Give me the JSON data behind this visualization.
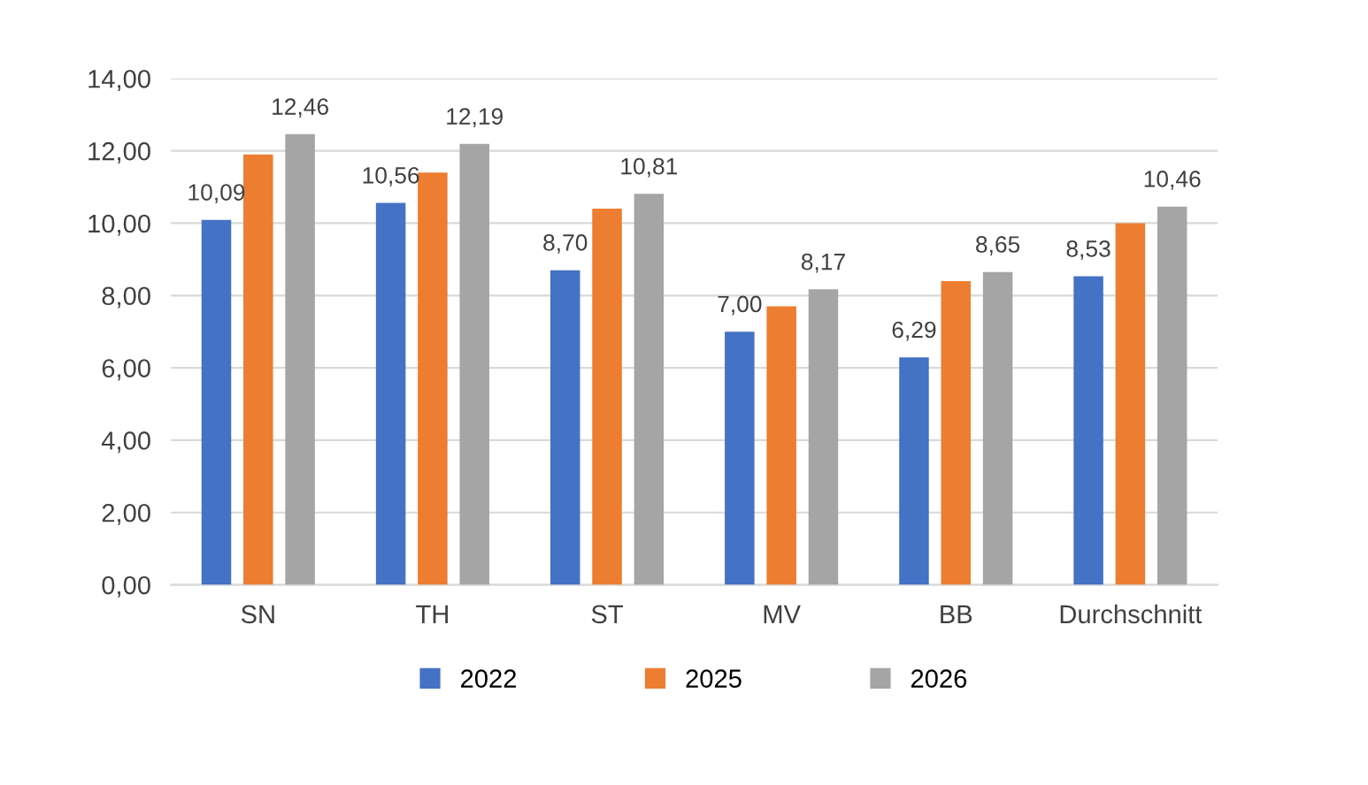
{
  "chart_data": {
    "type": "bar",
    "categories": [
      "SN",
      "TH",
      "ST",
      "MV",
      "BB",
      "Durchschnitt"
    ],
    "series": [
      {
        "name": "2022",
        "color": "#4472c4",
        "values": [
          10.09,
          10.56,
          8.7,
          7.0,
          6.29,
          8.53
        ],
        "value_labels": [
          "10,09",
          "10,56",
          "8,70",
          "7,00",
          "6,29",
          "8,53"
        ]
      },
      {
        "name": "2025",
        "color": "#ed7d31",
        "values": [
          11.9,
          11.4,
          10.4,
          7.7,
          8.4,
          10.0
        ]
      },
      {
        "name": "2026",
        "color": "#a5a5a5",
        "values": [
          12.46,
          12.19,
          10.81,
          8.17,
          8.65,
          10.46
        ],
        "value_labels": [
          "12,46",
          "12,19",
          "10,81",
          "8,17",
          "8,65",
          "10,46"
        ]
      }
    ],
    "ylim": [
      0,
      14
    ],
    "yticks": [
      {
        "value": 0,
        "label": "0,00"
      },
      {
        "value": 2,
        "label": "2,00"
      },
      {
        "value": 4,
        "label": "4,00"
      },
      {
        "value": 6,
        "label": "6,00"
      },
      {
        "value": 8,
        "label": "8,00"
      },
      {
        "value": 10,
        "label": "10,00"
      },
      {
        "value": 12,
        "label": "12,00"
      },
      {
        "value": 14,
        "label": "14,00"
      }
    ],
    "grid": "y",
    "legend": "bottom"
  }
}
